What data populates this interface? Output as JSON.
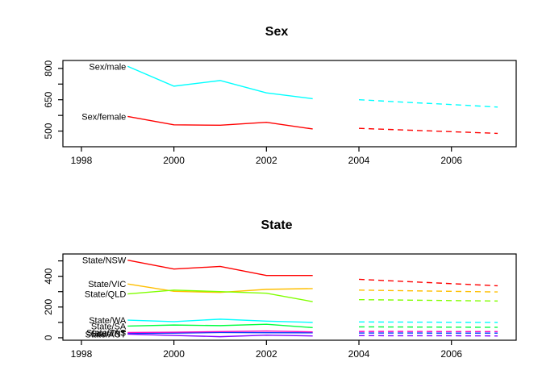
{
  "figure": {
    "background": "#FFFFFF",
    "axis_color": "#000000",
    "label_color": "#000000"
  },
  "chart_data": [
    {
      "type": "line",
      "title": "Sex",
      "xlim": [
        1997.6,
        2007.4
      ],
      "ylim": [
        425,
        838
      ],
      "xticks": [
        1998,
        2000,
        2002,
        2004,
        2006
      ],
      "xtick_labels": [
        "1998",
        "2000",
        "2002",
        "2004",
        "2006"
      ],
      "yticks": [
        500,
        575,
        650,
        725,
        800
      ],
      "ytick_labels": [
        "500",
        "",
        "650",
        "",
        "800"
      ],
      "years": [
        1999,
        2000,
        2001,
        2002,
        2003
      ],
      "forecast_years": [
        2004,
        2005,
        2006,
        2007
      ],
      "grid": false,
      "legend": "inline-labels",
      "series": [
        {
          "name": "Sex/male",
          "color": "#00FFFF",
          "values": [
            810,
            715,
            742,
            683,
            655
          ],
          "forecast": [
            650,
            638,
            627,
            615
          ]
        },
        {
          "name": "Sex/female",
          "color": "#FF0000",
          "values": [
            570,
            530,
            528,
            542,
            510
          ],
          "forecast": [
            513,
            505,
            497,
            489
          ]
        }
      ]
    },
    {
      "type": "line",
      "title": "State",
      "xlim": [
        1997.6,
        2007.4
      ],
      "ylim": [
        -16,
        545
      ],
      "xticks": [
        1998,
        2000,
        2002,
        2004,
        2006
      ],
      "xtick_labels": [
        "1998",
        "2000",
        "2002",
        "2004",
        "2006"
      ],
      "yticks": [
        0,
        100,
        200,
        300,
        400,
        500
      ],
      "ytick_labels": [
        "0",
        "",
        "200",
        "",
        "400",
        ""
      ],
      "years": [
        1999,
        2000,
        2001,
        2002,
        2003
      ],
      "forecast_years": [
        2004,
        2005,
        2006,
        2007
      ],
      "grid": false,
      "legend": "inline-labels",
      "series": [
        {
          "name": "State/NSW",
          "color": "#FF0000",
          "values": [
            505,
            447,
            464,
            405,
            405
          ],
          "forecast": [
            380,
            366,
            352,
            338
          ]
        },
        {
          "name": "State/VIC",
          "color": "#FFBF00",
          "values": [
            350,
            302,
            295,
            315,
            320
          ],
          "forecast": [
            310,
            306,
            302,
            298
          ]
        },
        {
          "name": "State/QLD",
          "color": "#80FF00",
          "values": [
            285,
            310,
            300,
            290,
            235
          ],
          "forecast": [
            248,
            245,
            242,
            239
          ]
        },
        {
          "name": "State/SA",
          "color": "#00FF40",
          "values": [
            76,
            83,
            79,
            88,
            66
          ],
          "forecast": [
            71,
            70,
            69,
            68
          ]
        },
        {
          "name": "State/WA",
          "color": "#00FFFF",
          "values": [
            115,
            105,
            121,
            108,
            100
          ],
          "forecast": [
            103,
            102,
            101,
            100
          ]
        },
        {
          "name": "State/NT",
          "color": "#0040FF",
          "values": [
            29,
            30,
            34,
            33,
            32
          ],
          "forecast": [
            31,
            31,
            30,
            30
          ]
        },
        {
          "name": "State/ACT",
          "color": "#8000FF",
          "values": [
            24,
            15,
            7,
            17,
            12
          ],
          "forecast": [
            14,
            13,
            13,
            12
          ]
        },
        {
          "name": "State/TAS",
          "color": "#FF00BF",
          "values": [
            34,
            36,
            40,
            44,
            38
          ],
          "forecast": [
            41,
            41,
            40,
            40
          ]
        }
      ]
    }
  ]
}
